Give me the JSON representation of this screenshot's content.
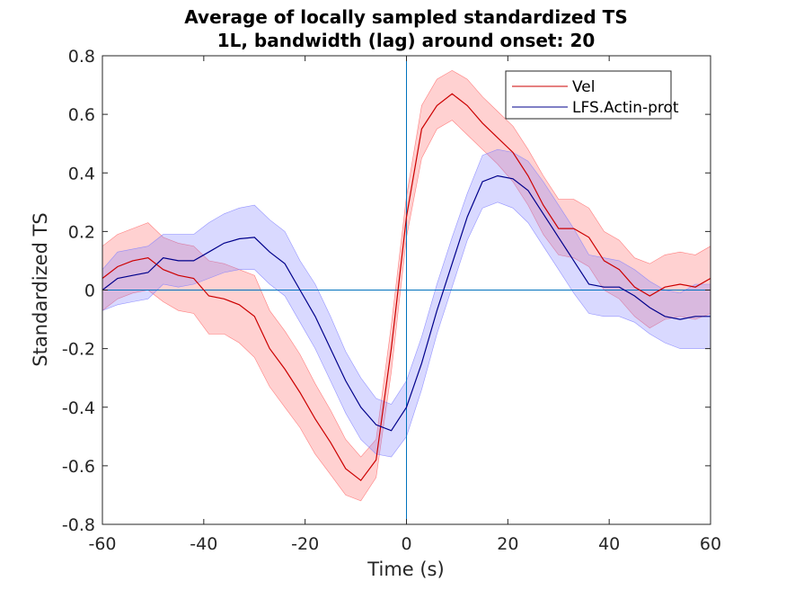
{
  "chart_data": {
    "type": "line",
    "title": [
      "Average of locally sampled standardized TS",
      "1L, bandwidth (lag) around onset: 20"
    ],
    "xlabel": "Time (s)",
    "ylabel": "Standardized TS",
    "xlim": [
      -60,
      60
    ],
    "ylim": [
      -0.8,
      0.8
    ],
    "xticks": [
      -60,
      -40,
      -20,
      0,
      20,
      40,
      60
    ],
    "xtick_labels": [
      "-60",
      "-40",
      "-20",
      "0",
      "20",
      "40",
      "60"
    ],
    "yticks": [
      -0.8,
      -0.6,
      -0.4,
      -0.2,
      0,
      0.2,
      0.4,
      0.6,
      0.8
    ],
    "ytick_labels": [
      "-0.8",
      "-0.6",
      "-0.4",
      "-0.2",
      "0",
      "0.2",
      "0.4",
      "0.6",
      "0.8"
    ],
    "grid": false,
    "legend_position": "top-right",
    "reference_lines": {
      "x": 0,
      "y": 0,
      "color": "#0072BD"
    },
    "x": [
      -60,
      -57,
      -54,
      -51,
      -48,
      -45,
      -42,
      -39,
      -36,
      -33,
      -30,
      -27,
      -24,
      -21,
      -18,
      -15,
      -12,
      -9,
      -6,
      -3,
      0,
      3,
      6,
      9,
      12,
      15,
      18,
      21,
      24,
      27,
      30,
      33,
      36,
      39,
      42,
      45,
      48,
      51,
      54,
      57,
      60
    ],
    "series": [
      {
        "name": "Vel",
        "color": "#cc0000",
        "band_color": "#ff6666",
        "values": [
          0.04,
          0.08,
          0.1,
          0.11,
          0.07,
          0.05,
          0.04,
          -0.02,
          -0.03,
          -0.05,
          -0.09,
          -0.2,
          -0.27,
          -0.35,
          -0.44,
          -0.52,
          -0.61,
          -0.65,
          -0.58,
          -0.2,
          0.25,
          0.55,
          0.63,
          0.67,
          0.63,
          0.57,
          0.52,
          0.47,
          0.39,
          0.29,
          0.21,
          0.21,
          0.18,
          0.1,
          0.07,
          0.01,
          -0.02,
          0.01,
          0.02,
          0.01,
          0.04
        ],
        "lower": [
          -0.07,
          -0.03,
          -0.01,
          0.0,
          -0.04,
          -0.07,
          -0.08,
          -0.15,
          -0.15,
          -0.18,
          -0.23,
          -0.33,
          -0.4,
          -0.47,
          -0.56,
          -0.63,
          -0.7,
          -0.72,
          -0.64,
          -0.28,
          0.18,
          0.45,
          0.55,
          0.58,
          0.53,
          0.48,
          0.43,
          0.37,
          0.29,
          0.19,
          0.12,
          0.11,
          0.08,
          0.0,
          -0.03,
          -0.09,
          -0.13,
          -0.1,
          -0.09,
          -0.1,
          -0.08
        ],
        "upper": [
          0.15,
          0.19,
          0.21,
          0.23,
          0.18,
          0.16,
          0.15,
          0.1,
          0.09,
          0.07,
          0.05,
          -0.07,
          -0.14,
          -0.22,
          -0.32,
          -0.41,
          -0.51,
          -0.57,
          -0.51,
          -0.12,
          0.32,
          0.63,
          0.72,
          0.75,
          0.72,
          0.66,
          0.61,
          0.56,
          0.48,
          0.39,
          0.31,
          0.31,
          0.28,
          0.2,
          0.17,
          0.11,
          0.09,
          0.12,
          0.13,
          0.12,
          0.15
        ]
      },
      {
        "name": "LFS.Actin-prot",
        "color": "#00008b",
        "band_color": "#8080ff",
        "values": [
          0.0,
          0.04,
          0.05,
          0.06,
          0.11,
          0.1,
          0.1,
          0.13,
          0.16,
          0.175,
          0.18,
          0.13,
          0.09,
          0.0,
          -0.09,
          -0.2,
          -0.31,
          -0.4,
          -0.46,
          -0.48,
          -0.4,
          -0.25,
          -0.07,
          0.09,
          0.25,
          0.37,
          0.39,
          0.38,
          0.34,
          0.26,
          0.18,
          0.1,
          0.02,
          0.01,
          0.01,
          -0.02,
          -0.06,
          -0.09,
          -0.1,
          -0.09,
          -0.09
        ],
        "lower": [
          -0.07,
          -0.05,
          -0.04,
          -0.03,
          0.02,
          0.01,
          0.02,
          0.04,
          0.06,
          0.07,
          0.07,
          0.02,
          -0.02,
          -0.11,
          -0.2,
          -0.31,
          -0.42,
          -0.51,
          -0.56,
          -0.57,
          -0.5,
          -0.34,
          -0.15,
          0.01,
          0.17,
          0.28,
          0.3,
          0.28,
          0.23,
          0.15,
          0.07,
          -0.01,
          -0.08,
          -0.09,
          -0.09,
          -0.11,
          -0.15,
          -0.18,
          -0.2,
          -0.2,
          -0.2
        ],
        "upper": [
          0.07,
          0.13,
          0.14,
          0.15,
          0.19,
          0.19,
          0.19,
          0.23,
          0.26,
          0.28,
          0.29,
          0.24,
          0.2,
          0.1,
          0.02,
          -0.09,
          -0.21,
          -0.3,
          -0.37,
          -0.39,
          -0.31,
          -0.16,
          0.02,
          0.18,
          0.33,
          0.46,
          0.48,
          0.47,
          0.44,
          0.37,
          0.29,
          0.21,
          0.12,
          0.11,
          0.1,
          0.07,
          0.03,
          0.0,
          -0.01,
          0.02,
          0.02
        ]
      }
    ]
  }
}
